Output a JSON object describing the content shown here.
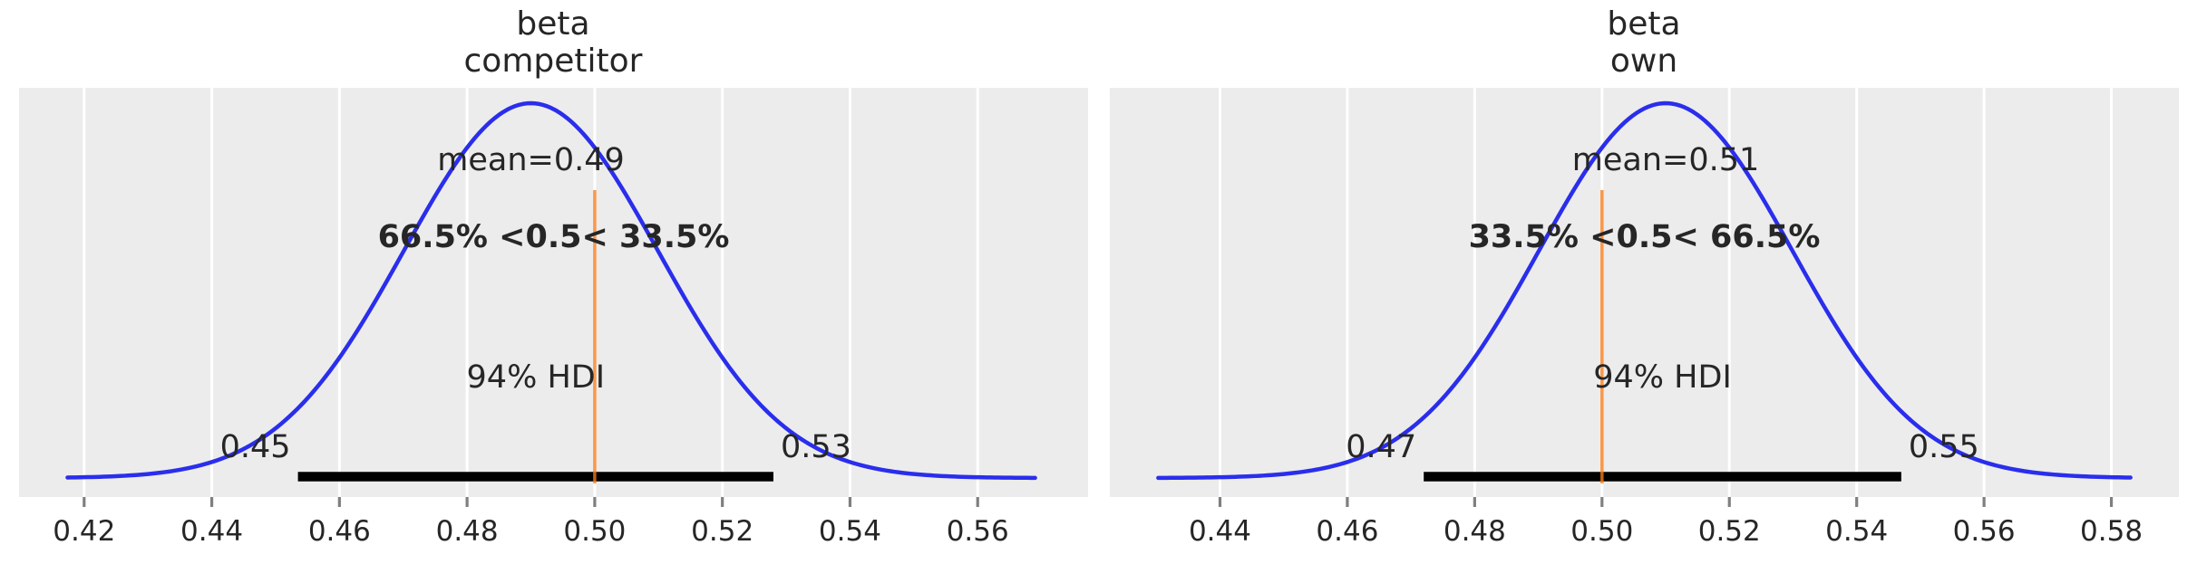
{
  "figure": {
    "background": "#ffffff",
    "panel_bg": "#ececec",
    "grid_color": "#ffffff",
    "curve_color": "#2a2eec",
    "ref_color": "#fa7c17",
    "hdi_bar_color": "#000000",
    "text_color": "#262626",
    "tick_color": "#7f7f7f"
  },
  "chart_data": [
    {
      "type": "area",
      "subtype": "posterior-kde",
      "title_lines": [
        "beta",
        "competitor"
      ],
      "title": "beta\ncompetitor",
      "xlim": [
        0.4098,
        0.5773
      ],
      "xticks": [
        0.42,
        0.44,
        0.46,
        0.48,
        0.5,
        0.52,
        0.54,
        0.56
      ],
      "xtick_labels": [
        "0.42",
        "0.44",
        "0.46",
        "0.48",
        "0.50",
        "0.52",
        "0.54",
        "0.56"
      ],
      "grid": "vertical-white",
      "kde": {
        "mean": 0.49,
        "sd": 0.0199,
        "x_start": 0.4174,
        "x_end": 0.569
      },
      "mean_value": 0.49,
      "mean_label": "mean=0.49",
      "ref_value": 0.5,
      "ref_label": "66.5% <0.5< 33.5%",
      "hdi": {
        "lo": 0.4535,
        "hi": 0.528,
        "label": "94% HDI",
        "lo_label": "0.45",
        "hi_label": "0.53"
      }
    },
    {
      "type": "area",
      "subtype": "posterior-kde",
      "title_lines": [
        "beta",
        "own"
      ],
      "title": "beta\nown",
      "xlim": [
        0.4227,
        0.5906
      ],
      "xticks": [
        0.44,
        0.46,
        0.48,
        0.5,
        0.52,
        0.54,
        0.56,
        0.58
      ],
      "xtick_labels": [
        "0.44",
        "0.46",
        "0.48",
        "0.50",
        "0.52",
        "0.54",
        "0.56",
        "0.58"
      ],
      "grid": "vertical-white",
      "kde": {
        "mean": 0.51,
        "sd": 0.0199,
        "x_start": 0.4303,
        "x_end": 0.583
      },
      "mean_value": 0.51,
      "mean_label": "mean=0.51",
      "ref_value": 0.5,
      "ref_label": "33.5% <0.5< 66.5%",
      "hdi": {
        "lo": 0.472,
        "hi": 0.547,
        "label": "94% HDI",
        "lo_label": "0.47",
        "hi_label": "0.55"
      }
    }
  ]
}
